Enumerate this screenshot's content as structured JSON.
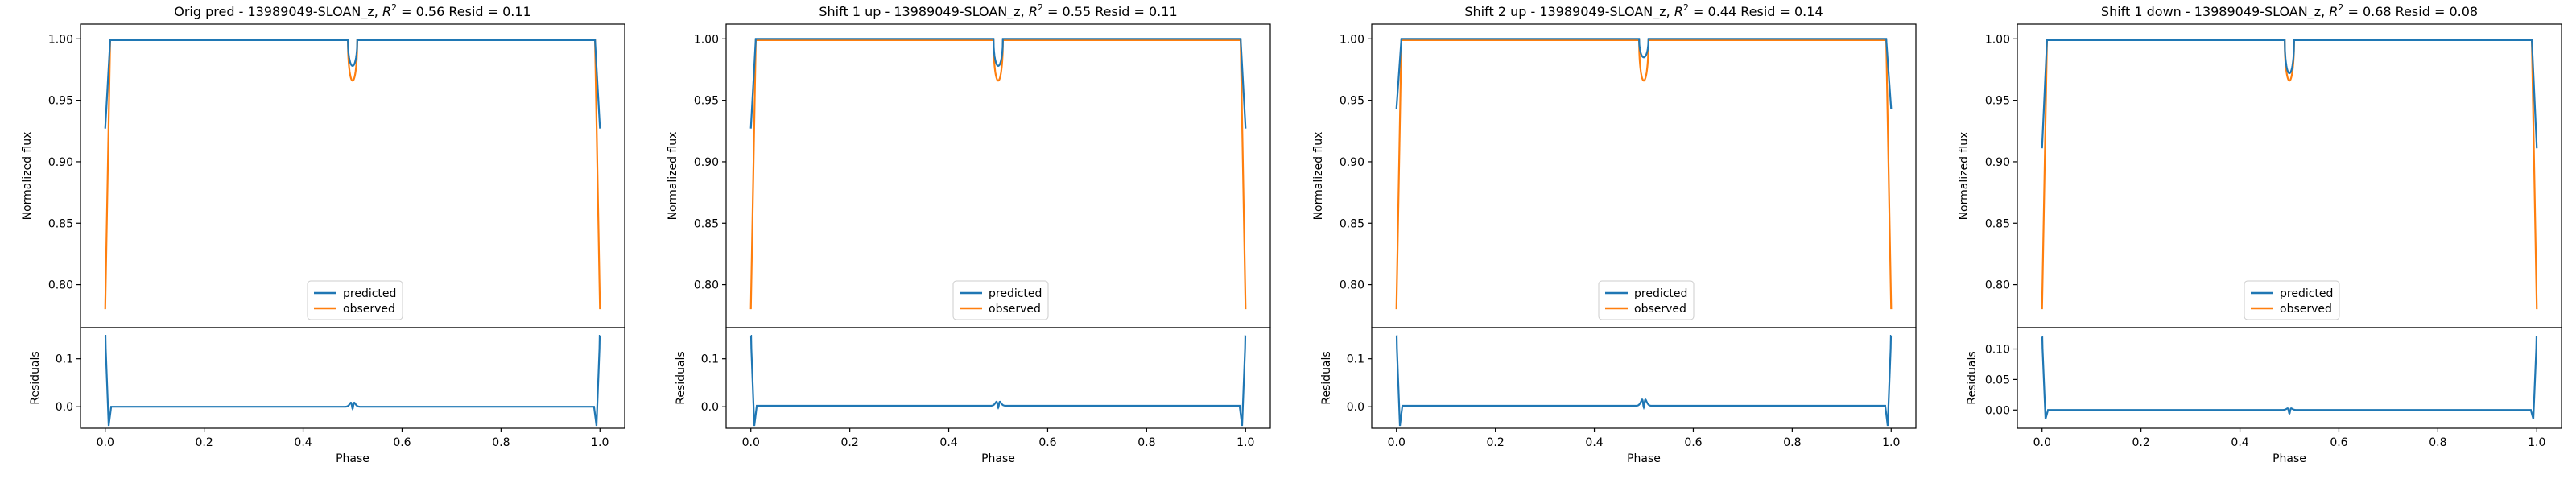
{
  "colors": {
    "predicted": "#1f77b4",
    "observed": "#ff7f0e",
    "axes": "#000000"
  },
  "chart_data": [
    {
      "type": "line",
      "title": "Orig pred - 13989049-SLOAN_z, $R^2 = 0.56$ Resid = 0.11",
      "title_parts": [
        "Orig pred - 13989049-SLOAN_z, ",
        "R",
        "2",
        " = 0.56 Resid = 0.11"
      ],
      "xlabel": "Phase",
      "ylabel": "Normalized flux",
      "resid_ylabel": "Residuals",
      "xlim": [
        -0.05,
        1.05
      ],
      "ylim": [
        0.765,
        1.012
      ],
      "resid_ylim": [
        -0.045,
        0.165
      ],
      "xticks": [
        "0.0",
        "0.2",
        "0.4",
        "0.6",
        "0.8",
        "1.0"
      ],
      "yticks": [
        "0.80",
        "0.85",
        "0.90",
        "0.95",
        "1.00"
      ],
      "resid_yticks": [
        "0.0",
        "0.1"
      ],
      "legend": {
        "position": "lower center",
        "entries": [
          "predicted",
          "observed"
        ]
      },
      "series": [
        {
          "name": "predicted",
          "edge_value": 0.927,
          "baseline": 0.999,
          "dip_min": 0.978
        },
        {
          "name": "observed",
          "edge_value": 0.78,
          "baseline": 0.999,
          "dip_min": 0.966
        }
      ],
      "residuals": {
        "edge_value": 0.148,
        "edge_neg": -0.04,
        "baseline": 0.0,
        "dip_peak": 0.012,
        "dip_low": -0.006
      }
    },
    {
      "type": "line",
      "title": "Shift 1 up - 13989049-SLOAN_z, $R^2 = 0.55$ Resid = 0.11",
      "title_parts": [
        "Shift 1 up - 13989049-SLOAN_z, ",
        "R",
        "2",
        " = 0.55 Resid = 0.11"
      ],
      "xlabel": "Phase",
      "ylabel": "Normalized flux",
      "resid_ylabel": "Residuals",
      "xlim": [
        -0.05,
        1.05
      ],
      "ylim": [
        0.765,
        1.012
      ],
      "resid_ylim": [
        -0.045,
        0.165
      ],
      "xticks": [
        "0.0",
        "0.2",
        "0.4",
        "0.6",
        "0.8",
        "1.0"
      ],
      "yticks": [
        "0.80",
        "0.85",
        "0.90",
        "0.95",
        "1.00"
      ],
      "resid_yticks": [
        "0.0",
        "0.1"
      ],
      "legend": {
        "position": "lower center",
        "entries": [
          "predicted",
          "observed"
        ]
      },
      "series": [
        {
          "name": "predicted",
          "edge_value": 0.927,
          "baseline": 1.0,
          "dip_min": 0.978
        },
        {
          "name": "observed",
          "edge_value": 0.78,
          "baseline": 0.999,
          "dip_min": 0.966
        }
      ],
      "residuals": {
        "edge_value": 0.148,
        "edge_neg": -0.04,
        "baseline": 0.002,
        "dip_peak": 0.014,
        "dip_low": -0.004
      }
    },
    {
      "type": "line",
      "title": "Shift 2 up - 13989049-SLOAN_z, $R^2 = 0.44$ Resid = 0.14",
      "title_parts": [
        "Shift 2 up - 13989049-SLOAN_z, ",
        "R",
        "2",
        " = 0.44 Resid = 0.14"
      ],
      "xlabel": "Phase",
      "ylabel": "Normalized flux",
      "resid_ylabel": "Residuals",
      "xlim": [
        -0.05,
        1.05
      ],
      "ylim": [
        0.765,
        1.012
      ],
      "resid_ylim": [
        -0.045,
        0.165
      ],
      "xticks": [
        "0.0",
        "0.2",
        "0.4",
        "0.6",
        "0.8",
        "1.0"
      ],
      "yticks": [
        "0.80",
        "0.85",
        "0.90",
        "0.95",
        "1.00"
      ],
      "resid_yticks": [
        "0.0",
        "0.1"
      ],
      "legend": {
        "position": "lower center",
        "entries": [
          "predicted",
          "observed"
        ]
      },
      "series": [
        {
          "name": "predicted",
          "edge_value": 0.943,
          "baseline": 1.0,
          "dip_min": 0.985
        },
        {
          "name": "observed",
          "edge_value": 0.78,
          "baseline": 0.999,
          "dip_min": 0.966
        }
      ],
      "residuals": {
        "edge_value": 0.148,
        "edge_neg": -0.04,
        "baseline": 0.002,
        "dip_peak": 0.02,
        "dip_low": -0.004
      }
    },
    {
      "type": "line",
      "title": "Shift 1 down - 13989049-SLOAN_z, $R^2 = 0.68$ Resid = 0.08",
      "title_parts": [
        "Shift 1 down - 13989049-SLOAN_z, ",
        "R",
        "2",
        " = 0.68 Resid = 0.08"
      ],
      "xlabel": "Phase",
      "ylabel": "Normalized flux",
      "resid_ylabel": "Residuals",
      "xlim": [
        -0.05,
        1.05
      ],
      "ylim": [
        0.765,
        1.012
      ],
      "resid_ylim": [
        -0.03,
        0.135
      ],
      "xticks": [
        "0.0",
        "0.2",
        "0.4",
        "0.6",
        "0.8",
        "1.0"
      ],
      "yticks": [
        "0.80",
        "0.85",
        "0.90",
        "0.95",
        "1.00"
      ],
      "resid_yticks": [
        "0.00",
        "0.05",
        "0.10"
      ],
      "legend": {
        "position": "lower center",
        "entries": [
          "predicted",
          "observed"
        ]
      },
      "series": [
        {
          "name": "predicted",
          "edge_value": 0.911,
          "baseline": 0.999,
          "dip_min": 0.972
        },
        {
          "name": "observed",
          "edge_value": 0.78,
          "baseline": 0.999,
          "dip_min": 0.966
        }
      ],
      "residuals": {
        "edge_value": 0.12,
        "edge_neg": -0.015,
        "baseline": 0.0,
        "dip_peak": 0.004,
        "dip_low": -0.007
      }
    }
  ]
}
